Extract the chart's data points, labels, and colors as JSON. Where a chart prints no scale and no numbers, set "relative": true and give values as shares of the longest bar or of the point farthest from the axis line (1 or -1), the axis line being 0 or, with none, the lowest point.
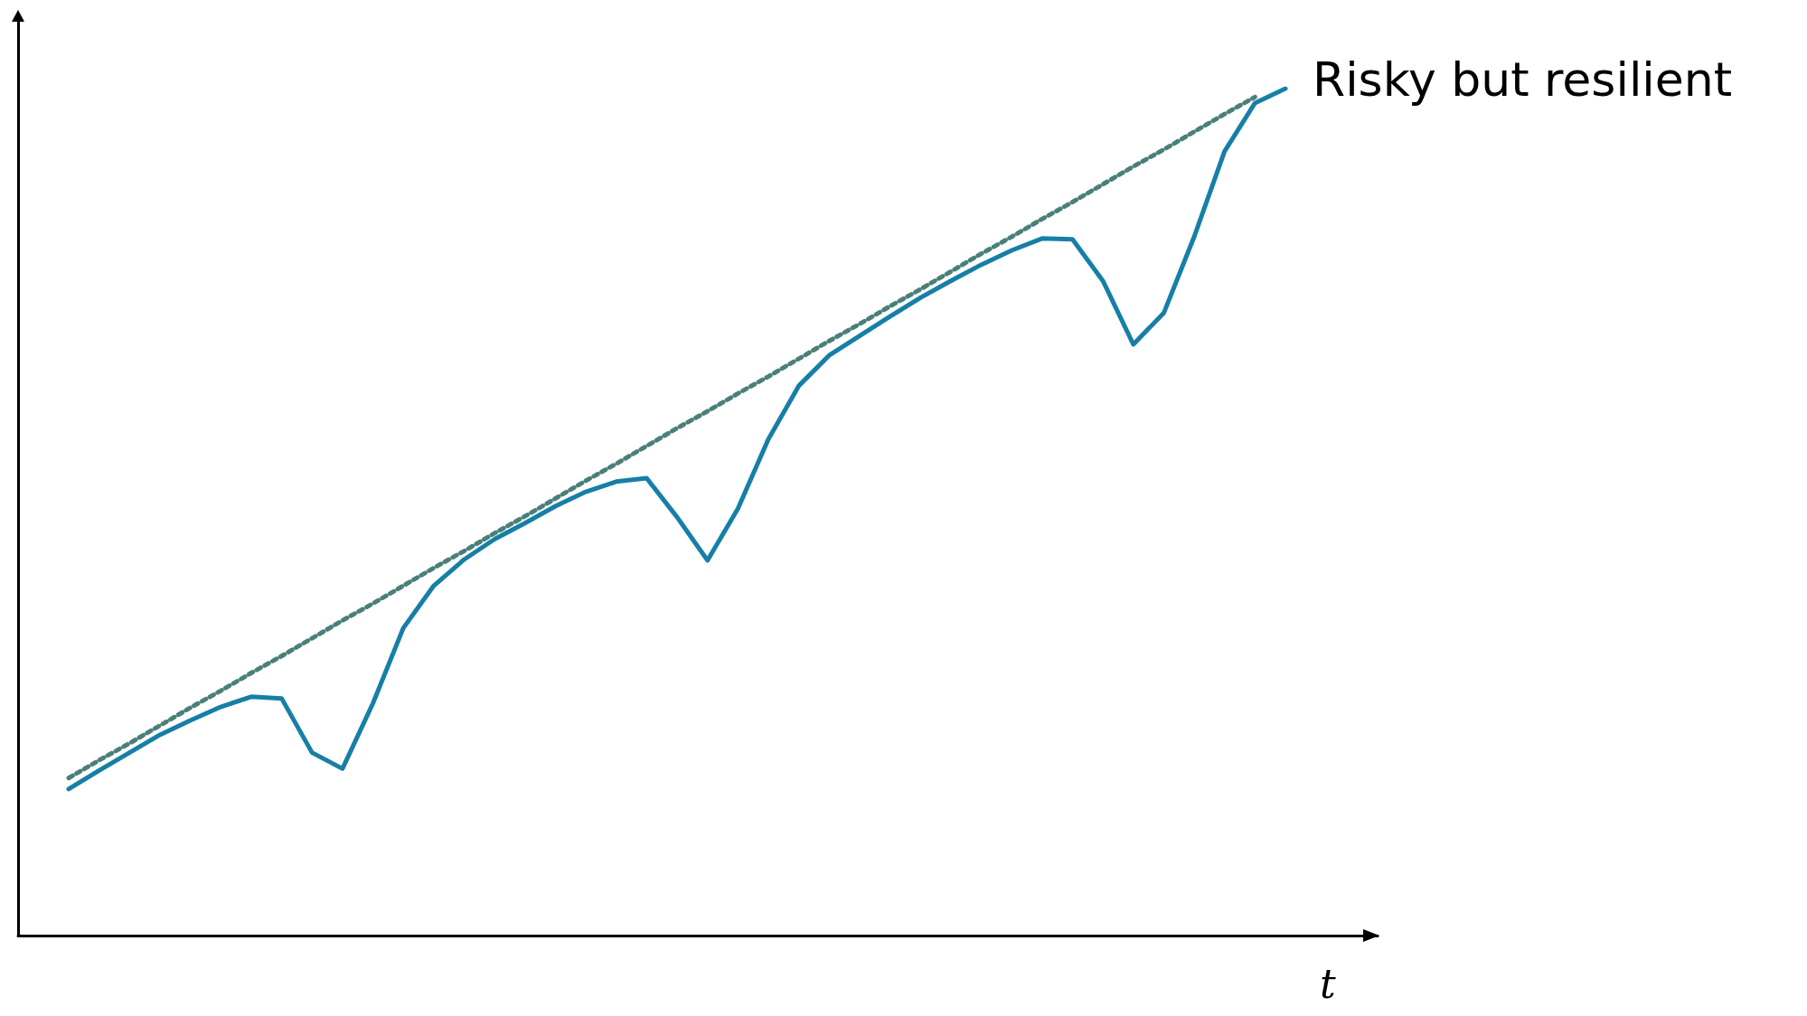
{
  "chart_data": {
    "type": "line",
    "relative": true,
    "xlabel": "t",
    "grid": false,
    "legend": false,
    "marker": "none",
    "categories": [
      null,
      null,
      null,
      null,
      null,
      null,
      null,
      null,
      null,
      null,
      null,
      null,
      null,
      null,
      null,
      null,
      null,
      null,
      null,
      null,
      null,
      null,
      null,
      null,
      null,
      null,
      null,
      null,
      null,
      null,
      null,
      null,
      null,
      null,
      null,
      null,
      null,
      null,
      null,
      null,
      null
    ],
    "series": [
      {
        "name": "Risky but resilient",
        "color": "#177fa6",
        "line_style": "solid",
        "values": [
          0.173,
          0.195,
          0.216,
          0.237,
          0.254,
          0.27,
          0.282,
          0.28,
          0.216,
          0.197,
          0.274,
          0.363,
          0.413,
          0.444,
          0.468,
          0.487,
          0.507,
          0.524,
          0.536,
          0.54,
          0.494,
          0.443,
          0.504,
          0.586,
          0.649,
          0.685,
          0.708,
          0.731,
          0.753,
          0.773,
          0.792,
          0.809,
          0.823,
          0.822,
          0.773,
          0.698,
          0.735,
          0.825,
          0.926,
          0.983,
          1
        ]
      },
      {
        "type": "line",
        "color": "#4a7f7a",
        "line_style": "dotted",
        "values": [
          0.186,
          0.207,
          0.227,
          0.248,
          0.269,
          0.289,
          0.31,
          0.33,
          0.351,
          0.372,
          0.392,
          0.413,
          0.434,
          0.454,
          0.475,
          0.495,
          0.516,
          0.537,
          0.557,
          0.578,
          0.599,
          0.619,
          0.64,
          0.66,
          0.681,
          0.702,
          0.722,
          0.743,
          0.763,
          0.784,
          0.805,
          0.825,
          0.846,
          0.866,
          0.887,
          0.908,
          0.928,
          0.949,
          0.97,
          0.99,
          null
        ]
      }
    ]
  }
}
